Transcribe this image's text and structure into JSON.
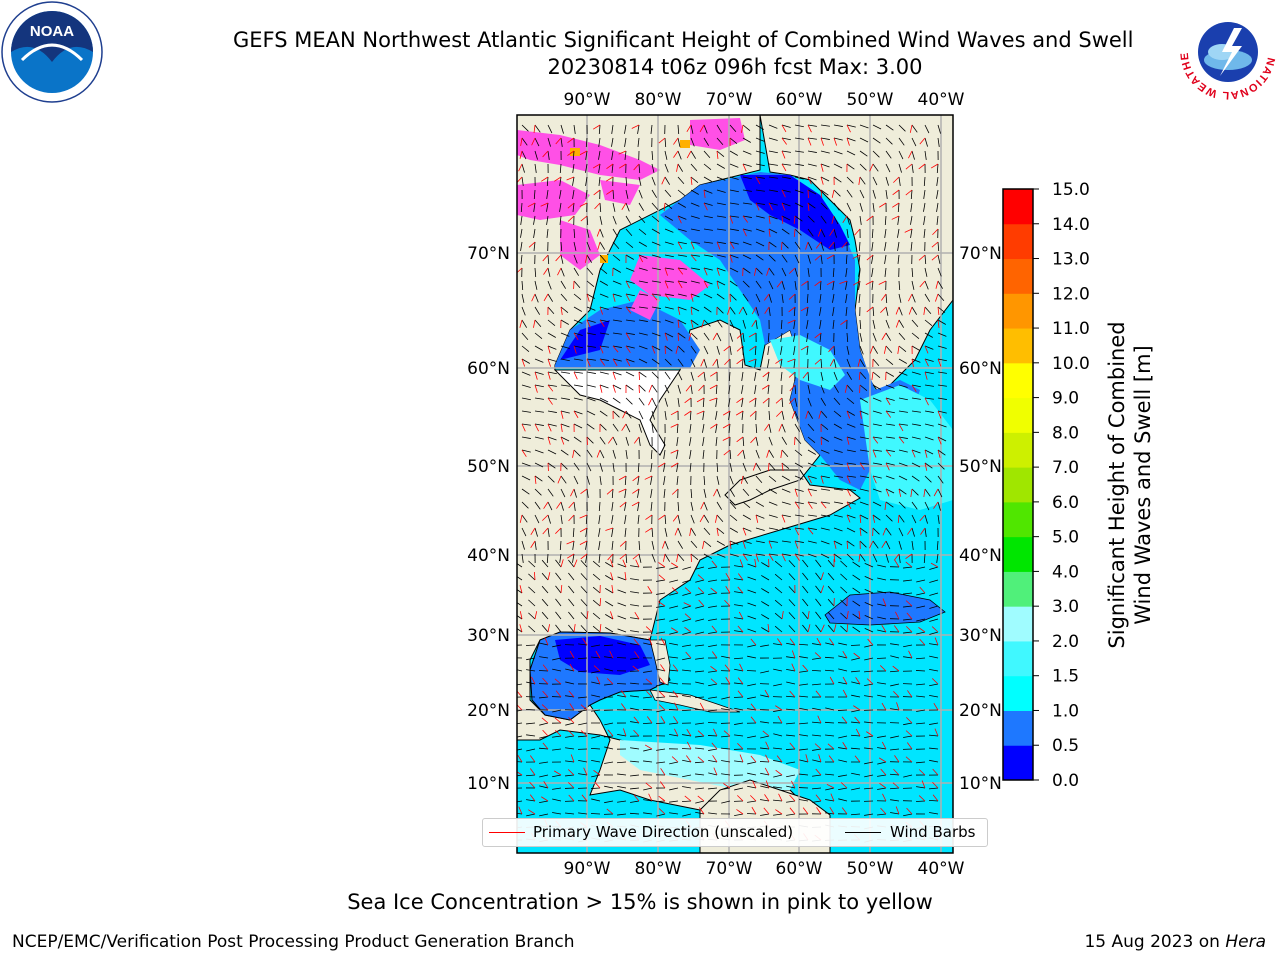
{
  "title": {
    "line1": "GEFS MEAN Northwest Atlantic Significant Height of Combined Wind Waves and Swell",
    "line2": "20230814 t06z 096h fcst   Max: 3.00"
  },
  "map": {
    "lon_labels": [
      "90°W",
      "80°W",
      "70°W",
      "60°W",
      "50°W",
      "40°W"
    ],
    "lat_labels": [
      "70°N",
      "60°N",
      "50°N",
      "40°N",
      "30°N",
      "20°N",
      "10°N"
    ],
    "colors": {
      "land": "#efedda",
      "ocean_deep_blue": "#0000ff",
      "ocean_blue": "#1e78ff",
      "ocean_cyan": "#00e5ff",
      "ocean_light_cyan": "#6ef4ff",
      "ice_pink": "#ff50e6",
      "grid": "#b0b0b0"
    }
  },
  "colorbar": {
    "label_line1": "Significant Height of Combined",
    "label_line2": "Wind Waves and Swell [m]",
    "ticks": [
      "0.0",
      "0.5",
      "1.0",
      "1.5",
      "2.0",
      "3.0",
      "4.0",
      "5.0",
      "6.0",
      "7.0",
      "8.0",
      "9.0",
      "10.0",
      "11.0",
      "12.0",
      "13.0",
      "14.0",
      "15.0"
    ],
    "colors": [
      "#0000ff",
      "#1e78ff",
      "#00ffff",
      "#40f8ff",
      "#a0fcff",
      "#50f07a",
      "#00e600",
      "#50e600",
      "#a0e600",
      "#cdf000",
      "#f0ff00",
      "#ffff00",
      "#ffbe00",
      "#ff9600",
      "#ff6400",
      "#ff3c00",
      "#ff0000"
    ]
  },
  "legend": {
    "wave_label": "Primary Wave Direction (unscaled)",
    "barb_label": "Wind Barbs"
  },
  "notes": {
    "ice": "Sea Ice Concentration > 15% is shown in pink to yellow"
  },
  "footer": {
    "left": "NCEP/EMC/Verification Post Processing Product Generation Branch",
    "date": "15 Aug 2023 on ",
    "host": "Hera"
  },
  "logos": {
    "noaa_text": "NOAA",
    "nws_text": "NATIONAL WEATHER SERVICE"
  }
}
